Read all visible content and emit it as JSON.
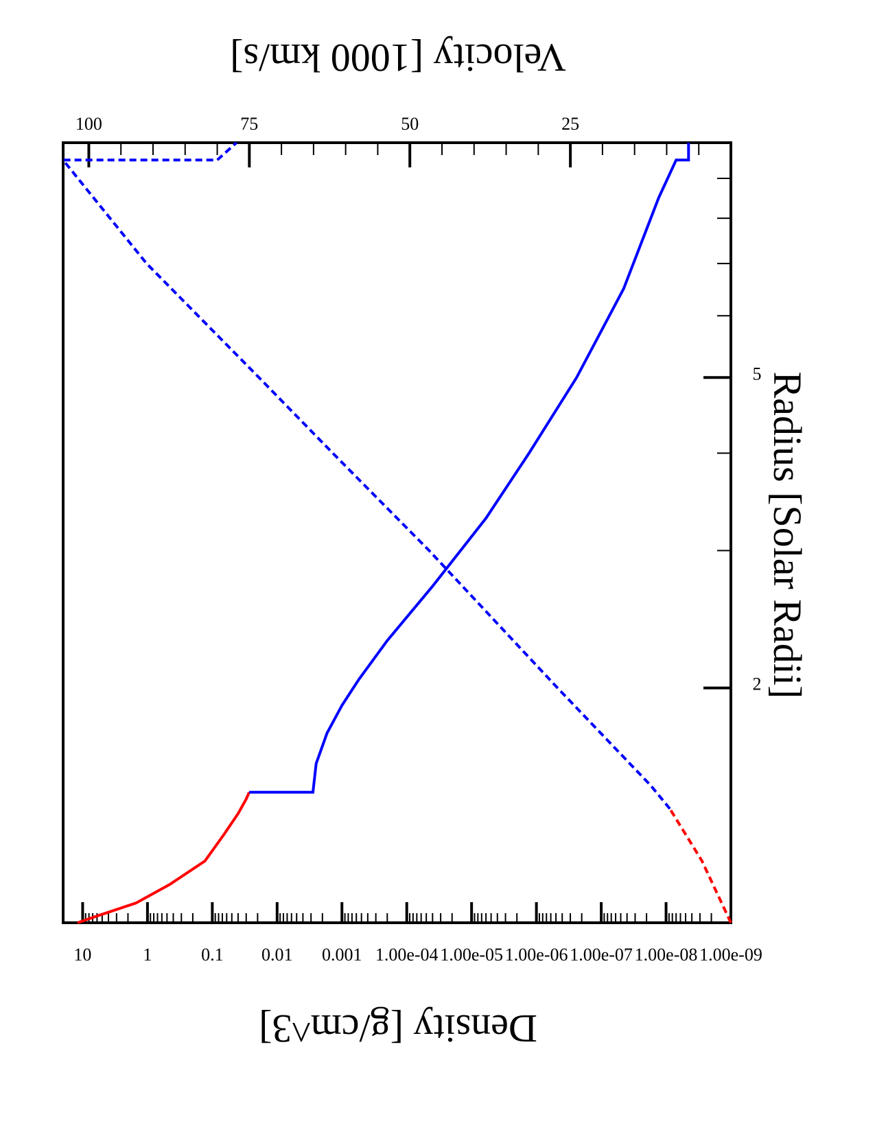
{
  "chart_data": {
    "type": "line",
    "orientation": "figure rotated 180 degrees (upside down)",
    "xlabel": "Radius [Solar Radii]",
    "x_scale": "log",
    "x_tick_labels": [
      {
        "value": 2,
        "label": "2"
      },
      {
        "value": 5,
        "label": "5"
      }
    ],
    "xlim": [
      1,
      10
    ],
    "ylabel_left": "Density [g/cm^3]",
    "y_left_scale": "log",
    "y_left_ticks": [
      "10",
      "1",
      "0.1",
      "0.01",
      "0.001",
      "1.00e-04",
      "1.00e-05",
      "1.00e-06",
      "1.00e-07",
      "1.00e-08",
      "1.00e-09"
    ],
    "ylim_left": [
      1e-09,
      20
    ],
    "ylabel_right": "Velocity [1000 km/s]",
    "y_right_ticks": [
      "100",
      "75",
      "50",
      "25"
    ],
    "ylim_right": [
      0,
      104
    ],
    "colors": {
      "inner": "#ff0000",
      "outer": "#0000ff"
    },
    "series": [
      {
        "kind": "density",
        "style": "solid",
        "color": "#ff0000",
        "x": [
          1.0,
          1.02,
          1.06,
          1.12,
          1.2,
          1.3,
          1.38,
          1.44,
          1.47
        ],
        "y": [
          12,
          6,
          1.5,
          0.45,
          0.13,
          0.065,
          0.04,
          0.03,
          0.027
        ]
      },
      {
        "kind": "density",
        "style": "solid",
        "color": "#0000ff",
        "x": [
          1.47,
          1.47,
          1.6,
          1.75,
          1.9,
          2.05,
          2.3,
          2.7,
          3.3,
          4.0,
          5.0,
          6.5,
          8.5,
          9.5,
          9.5,
          10.0
        ],
        "y": [
          0.027,
          0.0028,
          0.0025,
          0.0017,
          0.001,
          0.00055,
          0.0002,
          4e-05,
          6e-06,
          1.3e-06,
          2.4e-07,
          4.5e-08,
          1.3e-08,
          7e-09,
          4.5e-09,
          4.5e-09
        ]
      },
      {
        "kind": "velocity",
        "style": "dashed",
        "color": "#ff0000",
        "x": [
          1.0,
          1.2,
          1.4
        ],
        "y": [
          0,
          4.5,
          9.5
        ]
      },
      {
        "kind": "velocity",
        "style": "dashed",
        "color": "#0000ff",
        "x": [
          1.4,
          1.5,
          2.0,
          3.0,
          4.0,
          5.0,
          7.0,
          9.5,
          9.5,
          10.0
        ],
        "y": [
          9.5,
          12.5,
          27,
          47,
          62,
          73.5,
          91,
          104,
          80,
          77
        ]
      }
    ]
  }
}
